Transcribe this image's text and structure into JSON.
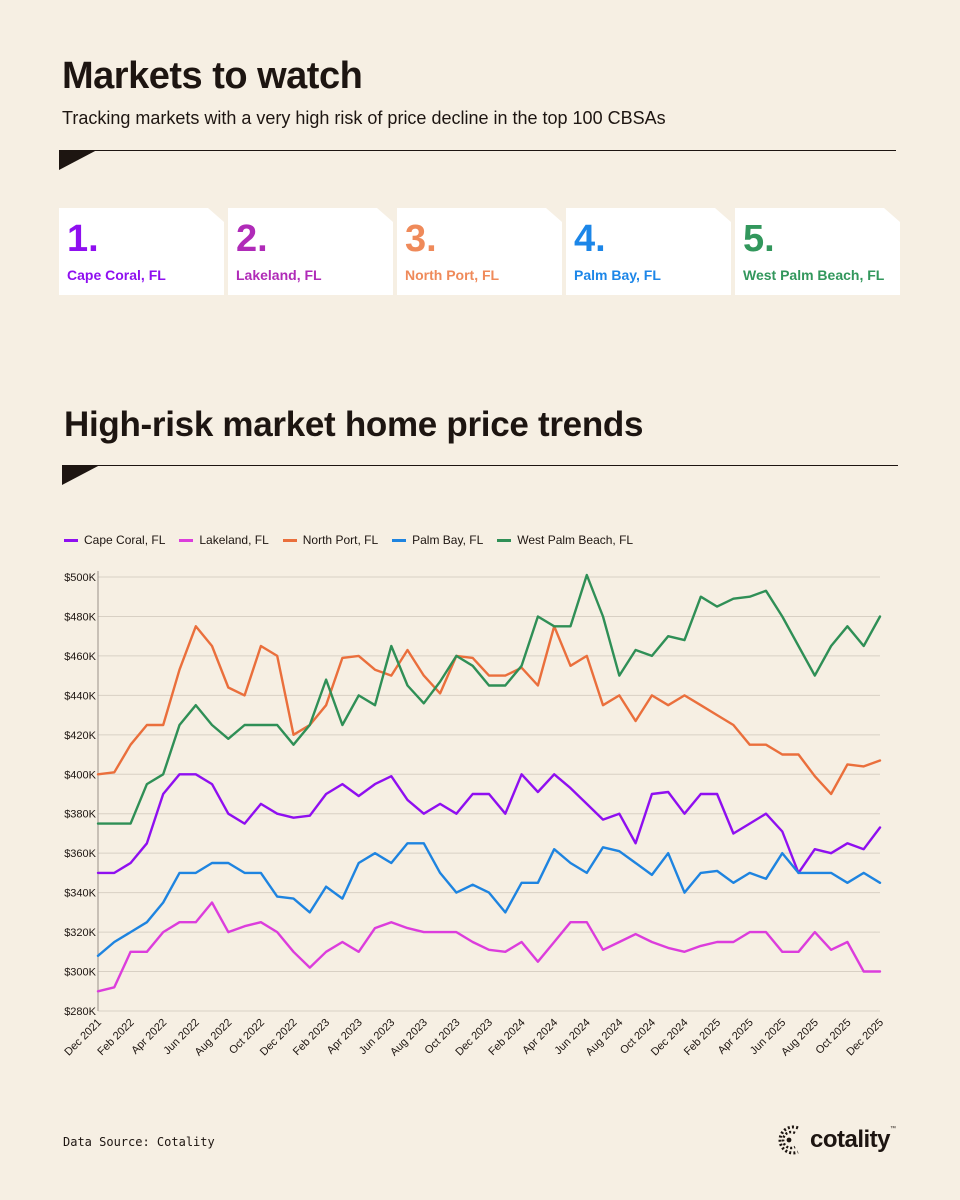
{
  "header": {
    "title": "Markets to watch",
    "subtitle": "Tracking markets with a very high risk of price decline in the top 100 CBSAs"
  },
  "markets": [
    {
      "rank": "1.",
      "city": "Cape Coral, FL",
      "color": "#8f0ff0"
    },
    {
      "rank": "2.",
      "city": "Lakeland, FL",
      "color": "#b02bb8"
    },
    {
      "rank": "3.",
      "city": "North Port, FL",
      "color": "#ef8a5a"
    },
    {
      "rank": "4.",
      "city": "Palm Bay, FL",
      "color": "#1c86e8"
    },
    {
      "rank": "5.",
      "city": "West Palm Beach, FL",
      "color": "#32975c"
    }
  ],
  "section_title": "High-risk market home price trends",
  "chart_data": {
    "type": "line",
    "title": "High-risk market home price trends",
    "xlabel": "",
    "ylabel": "",
    "ylim": [
      280,
      500
    ],
    "yticks": [
      280,
      300,
      320,
      340,
      360,
      380,
      400,
      420,
      440,
      460,
      480,
      500
    ],
    "ytick_labels": [
      "$280K",
      "$300K",
      "$320K",
      "$340K",
      "$360K",
      "$380K",
      "$400K",
      "$420K",
      "$440K",
      "$460K",
      "$480K",
      "$500K"
    ],
    "x": [
      "Dec 2021",
      "Jan 2022",
      "Feb 2022",
      "Mar 2022",
      "Apr 2022",
      "May 2022",
      "Jun 2022",
      "Jul 2022",
      "Aug 2022",
      "Sep 2022",
      "Oct 2022",
      "Nov 2022",
      "Dec 2022",
      "Jan 2023",
      "Feb 2023",
      "Mar 2023",
      "Apr 2023",
      "May 2023",
      "Jun 2023",
      "Jul 2023",
      "Aug 2023",
      "Sep 2023",
      "Oct 2023",
      "Nov 2023",
      "Dec 2023",
      "Jan 2024",
      "Feb 2024",
      "Mar 2024",
      "Apr 2024",
      "May 2024",
      "Jun 2024",
      "Jul 2024",
      "Aug 2024",
      "Sep 2024",
      "Oct 2024",
      "Nov 2024",
      "Dec 2024",
      "Jan 2025",
      "Feb 2025",
      "Mar 2025",
      "Apr 2025",
      "May 2025",
      "Jun 2025",
      "Jul 2025",
      "Aug 2025",
      "Sep 2025",
      "Oct 2025",
      "Nov 2025",
      "Dec 2025"
    ],
    "xtick_labels": [
      "Dec 2021",
      "Feb 2022",
      "Apr 2022",
      "Jun 2022",
      "Aug 2022",
      "Oct 2022",
      "Dec 2022",
      "Feb 2023",
      "Apr 2023",
      "Jun 2023",
      "Aug 2023",
      "Oct 2023",
      "Dec 2023",
      "Feb 2024",
      "Apr 2024",
      "Jun 2024",
      "Aug 2024",
      "Oct 2024",
      "Dec 2024",
      "Feb 2025",
      "Apr 2025",
      "Jun 2025",
      "Aug 2025",
      "Oct 2025",
      "Dec 2025"
    ],
    "legend_position": "top-left",
    "grid": true,
    "series": [
      {
        "name": "Cape Coral, FL",
        "color": "#8f0ff0",
        "values": [
          350,
          350,
          355,
          365,
          390,
          400,
          400,
          395,
          380,
          375,
          385,
          380,
          378,
          379,
          390,
          395,
          389,
          395,
          399,
          387,
          380,
          385,
          380,
          390,
          390,
          380,
          400,
          391,
          400,
          393,
          385,
          377,
          380,
          365,
          390,
          391,
          380,
          390,
          390,
          370,
          375,
          380,
          371,
          350,
          362,
          360,
          365,
          362,
          373
        ]
      },
      {
        "name": "Lakeland, FL",
        "color": "#dc3ddc",
        "values": [
          290,
          292,
          310,
          310,
          320,
          325,
          325,
          335,
          320,
          323,
          325,
          320,
          310,
          302,
          310,
          315,
          310,
          322,
          325,
          322,
          320,
          320,
          320,
          315,
          311,
          310,
          315,
          305,
          315,
          325,
          325,
          311,
          315,
          319,
          315,
          312,
          310,
          313,
          315,
          315,
          320,
          320,
          310,
          310,
          320,
          311,
          315,
          300,
          300
        ]
      },
      {
        "name": "North Port, FL",
        "color": "#ea6f3c",
        "values": [
          400,
          401,
          415,
          425,
          425,
          453,
          475,
          465,
          444,
          440,
          465,
          460,
          420,
          425,
          435,
          459,
          460,
          453,
          450,
          463,
          450,
          441,
          460,
          459,
          450,
          450,
          454,
          445,
          475,
          455,
          460,
          435,
          440,
          427,
          440,
          435,
          440,
          435,
          430,
          425,
          415,
          415,
          410,
          410,
          399,
          390,
          405,
          404,
          407
        ]
      },
      {
        "name": "Palm Bay, FL",
        "color": "#1e84e0",
        "values": [
          308,
          315,
          320,
          325,
          335,
          350,
          350,
          355,
          355,
          350,
          350,
          338,
          337,
          330,
          343,
          337,
          355,
          360,
          355,
          365,
          365,
          350,
          340,
          344,
          340,
          330,
          345,
          345,
          362,
          355,
          350,
          363,
          361,
          355,
          349,
          360,
          340,
          350,
          351,
          345,
          350,
          347,
          360,
          350,
          350,
          350,
          345,
          350,
          345
        ]
      },
      {
        "name": "West Palm Beach, FL",
        "color": "#2f8f56",
        "values": [
          375,
          375,
          375,
          395,
          400,
          425,
          435,
          425,
          418,
          425,
          425,
          425,
          415,
          425,
          448,
          425,
          440,
          435,
          465,
          445,
          436,
          447,
          460,
          455,
          445,
          445,
          455,
          480,
          475,
          475,
          501,
          480,
          450,
          463,
          460,
          470,
          468,
          490,
          485,
          489,
          490,
          493,
          480,
          465,
          450,
          465,
          475,
          465,
          480
        ]
      }
    ]
  },
  "footer": {
    "source": "Data Source: Cotality",
    "brand": "cotality",
    "brand_mark": "™"
  }
}
